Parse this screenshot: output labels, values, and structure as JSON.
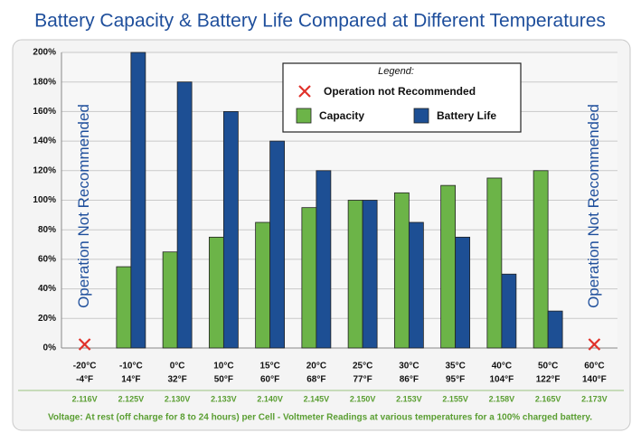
{
  "chart_data": {
    "type": "bar",
    "title": "Battery Capacity & Battery Life Compared at Different Temperatures",
    "categories": [
      "-20°C",
      "-10°C",
      "0°C",
      "10°C",
      "15°C",
      "20°C",
      "25°C",
      "30°C",
      "35°C",
      "40°C",
      "50°C",
      "60°C"
    ],
    "categories_f": [
      "-4°F",
      "14°F",
      "32°F",
      "50°F",
      "60°F",
      "68°F",
      "77°F",
      "86°F",
      "95°F",
      "104°F",
      "122°F",
      "140°F"
    ],
    "voltages": [
      "2.116V",
      "2.125V",
      "2.130V",
      "2.133V",
      "2.140V",
      "2.145V",
      "2.150V",
      "2.153V",
      "2.155V",
      "2.158V",
      "2.165V",
      "2.173V"
    ],
    "note": "Voltage:  At rest (off charge for 8 to 24 hours) per Cell - Voltmeter Readings at various temperatures for a 100% charged battery.",
    "series": [
      {
        "name": "Capacity",
        "color": "#6cb448",
        "values": [
          null,
          55,
          65,
          75,
          85,
          95,
          100,
          105,
          110,
          115,
          120,
          null
        ]
      },
      {
        "name": "Battery Life",
        "color": "#1d4f94",
        "values": [
          null,
          200,
          180,
          160,
          140,
          120,
          100,
          85,
          75,
          50,
          25,
          null
        ]
      }
    ],
    "ylim": [
      0,
      200
    ],
    "yticks": [
      {
        "value": 0,
        "label": "0%"
      },
      {
        "value": 20,
        "label": "20%"
      },
      {
        "value": 40,
        "label": "40%"
      },
      {
        "value": 60,
        "label": "60%"
      },
      {
        "value": 80,
        "label": "80%"
      },
      {
        "value": 100,
        "label": "100%"
      },
      {
        "value": 120,
        "label": "120%"
      },
      {
        "value": 140,
        "label": "140%"
      },
      {
        "value": 160,
        "label": "160%"
      },
      {
        "value": 180,
        "label": "180%"
      },
      {
        "value": 200,
        "label": "200%"
      }
    ],
    "grid": true,
    "legend_title": "Legend:",
    "legend_marker_label": "Operation not Recommended",
    "side_labels": [
      "Operation Not Recommended",
      "Operation Not Recommended"
    ]
  }
}
